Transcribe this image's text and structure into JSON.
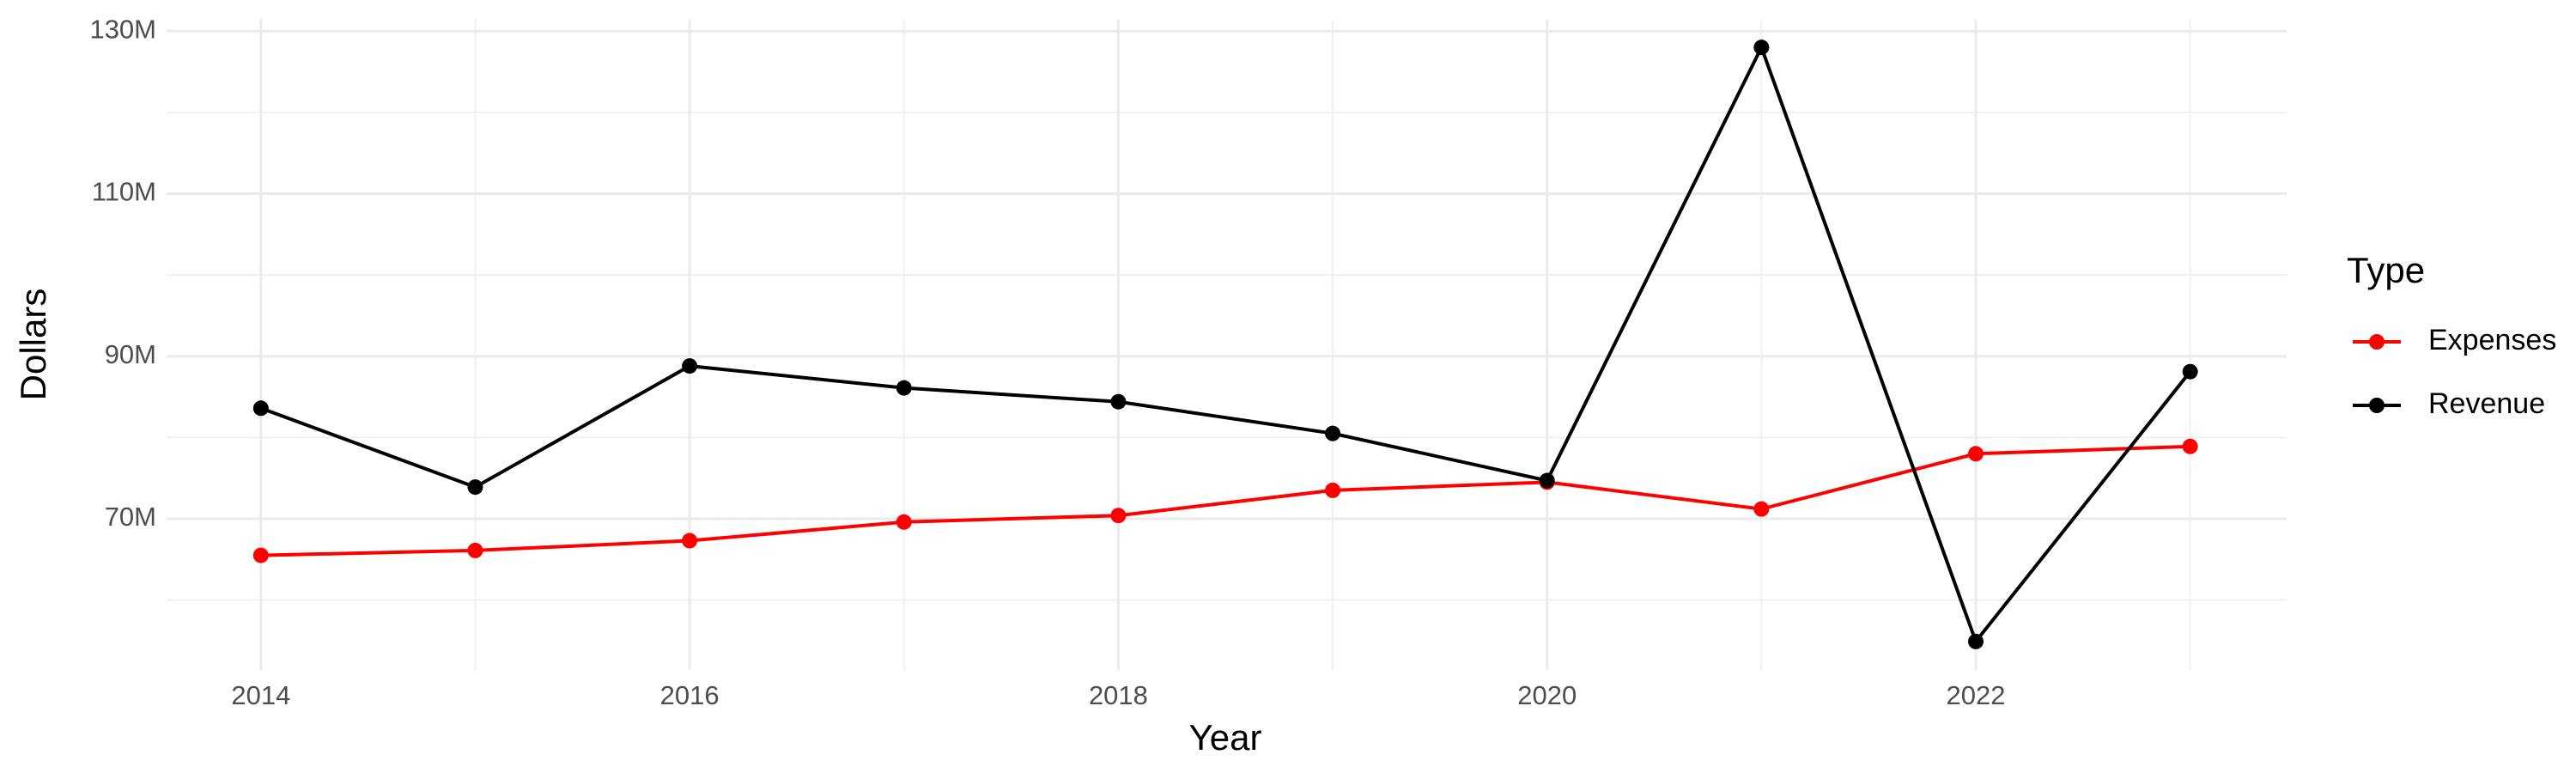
{
  "chart_data": {
    "type": "line",
    "x_label": "Year",
    "y_label": "Dollars",
    "legend_title": "Type",
    "x": [
      2014,
      2015,
      2016,
      2017,
      2018,
      2019,
      2020,
      2021,
      2022,
      2023
    ],
    "series": [
      {
        "name": "Expenses",
        "color": "#ff0000",
        "values": [
          65500000,
          66100000,
          67300000,
          69600000,
          70400000,
          73500000,
          74500000,
          71200000,
          78000000,
          78900000
        ]
      },
      {
        "name": "Revenue",
        "color": "#000000",
        "values": [
          83600000,
          73900000,
          88800000,
          86100000,
          84400000,
          80500000,
          74700000,
          128000000,
          54900000,
          88100000
        ]
      }
    ],
    "xlim": [
      2013.56,
      2023.45
    ],
    "xticks": [
      2014,
      2016,
      2018,
      2020,
      2022
    ],
    "ylim": [
      51400000,
      131400000
    ],
    "yticks": [
      {
        "value": 70000000,
        "label": "70M"
      },
      {
        "value": 90000000,
        "label": "90M"
      },
      {
        "value": 110000000,
        "label": "110M"
      },
      {
        "value": 130000000,
        "label": "130M"
      }
    ],
    "grid": true,
    "legend_position": "right"
  }
}
